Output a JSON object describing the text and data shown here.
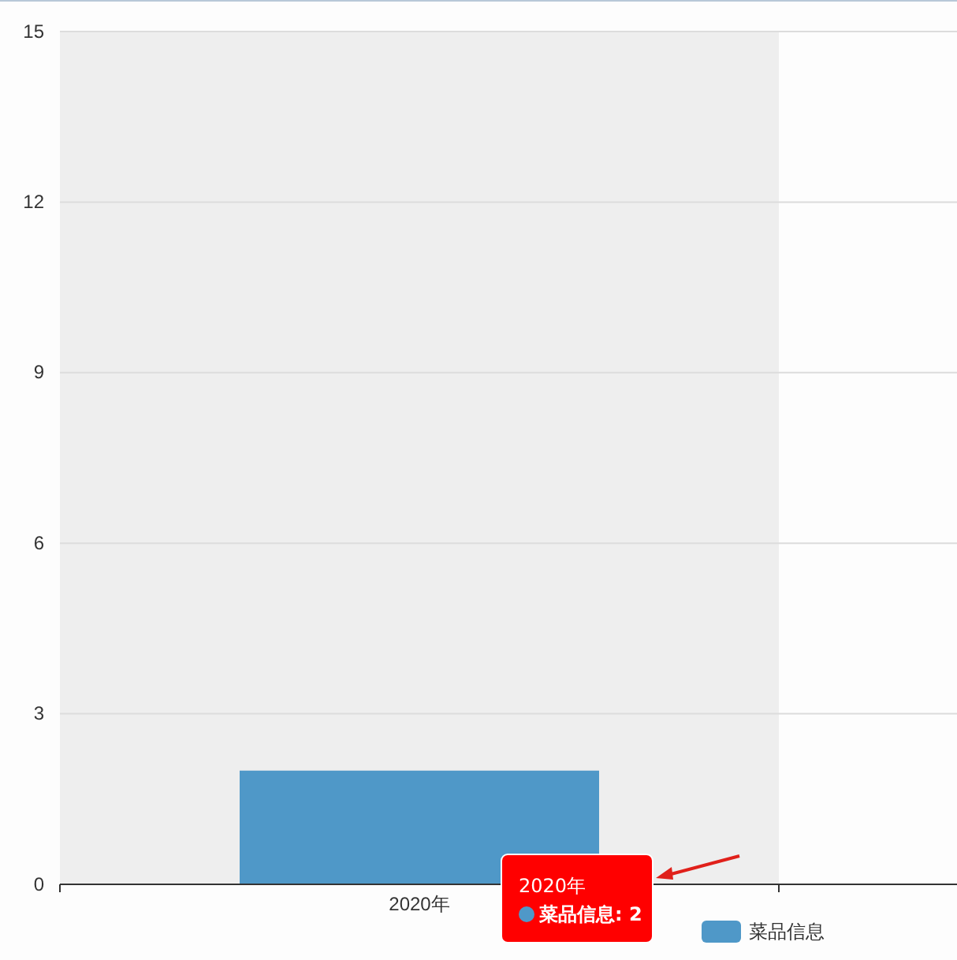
{
  "chart_data": {
    "type": "bar",
    "categories": [
      "2020年",
      null
    ],
    "series": [
      {
        "name": "菜品信息",
        "color": "#4f98c8",
        "values": [
          2,
          null
        ]
      }
    ],
    "ylim": [
      0,
      15
    ],
    "yticks": [
      0,
      3,
      6,
      9,
      12,
      15
    ],
    "grid": "y",
    "legend": "bottom",
    "bands": [
      {
        "axis": "x",
        "from": "2020年",
        "to": "2020年",
        "color": "#eeeeee"
      }
    ],
    "annotations": [
      "2020年",
      "菜品信息: 2"
    ]
  }
}
